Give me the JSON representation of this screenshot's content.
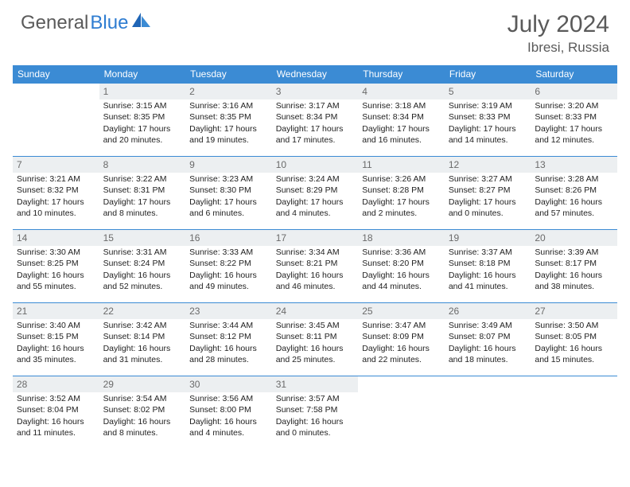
{
  "brand": {
    "part1": "General",
    "part2": "Blue"
  },
  "title": "July 2024",
  "location": "Ibresi, Russia",
  "colors": {
    "header_bg": "#3b8bd4",
    "header_text": "#ffffff",
    "daynum_bg": "#eceff1",
    "daynum_text": "#6a6a6a",
    "border": "#3b8bd4",
    "brand_gray": "#5a5a5a",
    "brand_blue": "#2e7cd1"
  },
  "weekdays": [
    "Sunday",
    "Monday",
    "Tuesday",
    "Wednesday",
    "Thursday",
    "Friday",
    "Saturday"
  ],
  "layout": {
    "first_weekday_index": 1,
    "days_in_month": 31
  },
  "days": [
    {
      "n": 1,
      "sunrise": "3:15 AM",
      "sunset": "8:35 PM",
      "daylight": "17 hours and 20 minutes."
    },
    {
      "n": 2,
      "sunrise": "3:16 AM",
      "sunset": "8:35 PM",
      "daylight": "17 hours and 19 minutes."
    },
    {
      "n": 3,
      "sunrise": "3:17 AM",
      "sunset": "8:34 PM",
      "daylight": "17 hours and 17 minutes."
    },
    {
      "n": 4,
      "sunrise": "3:18 AM",
      "sunset": "8:34 PM",
      "daylight": "17 hours and 16 minutes."
    },
    {
      "n": 5,
      "sunrise": "3:19 AM",
      "sunset": "8:33 PM",
      "daylight": "17 hours and 14 minutes."
    },
    {
      "n": 6,
      "sunrise": "3:20 AM",
      "sunset": "8:33 PM",
      "daylight": "17 hours and 12 minutes."
    },
    {
      "n": 7,
      "sunrise": "3:21 AM",
      "sunset": "8:32 PM",
      "daylight": "17 hours and 10 minutes."
    },
    {
      "n": 8,
      "sunrise": "3:22 AM",
      "sunset": "8:31 PM",
      "daylight": "17 hours and 8 minutes."
    },
    {
      "n": 9,
      "sunrise": "3:23 AM",
      "sunset": "8:30 PM",
      "daylight": "17 hours and 6 minutes."
    },
    {
      "n": 10,
      "sunrise": "3:24 AM",
      "sunset": "8:29 PM",
      "daylight": "17 hours and 4 minutes."
    },
    {
      "n": 11,
      "sunrise": "3:26 AM",
      "sunset": "8:28 PM",
      "daylight": "17 hours and 2 minutes."
    },
    {
      "n": 12,
      "sunrise": "3:27 AM",
      "sunset": "8:27 PM",
      "daylight": "17 hours and 0 minutes."
    },
    {
      "n": 13,
      "sunrise": "3:28 AM",
      "sunset": "8:26 PM",
      "daylight": "16 hours and 57 minutes."
    },
    {
      "n": 14,
      "sunrise": "3:30 AM",
      "sunset": "8:25 PM",
      "daylight": "16 hours and 55 minutes."
    },
    {
      "n": 15,
      "sunrise": "3:31 AM",
      "sunset": "8:24 PM",
      "daylight": "16 hours and 52 minutes."
    },
    {
      "n": 16,
      "sunrise": "3:33 AM",
      "sunset": "8:22 PM",
      "daylight": "16 hours and 49 minutes."
    },
    {
      "n": 17,
      "sunrise": "3:34 AM",
      "sunset": "8:21 PM",
      "daylight": "16 hours and 46 minutes."
    },
    {
      "n": 18,
      "sunrise": "3:36 AM",
      "sunset": "8:20 PM",
      "daylight": "16 hours and 44 minutes."
    },
    {
      "n": 19,
      "sunrise": "3:37 AM",
      "sunset": "8:18 PM",
      "daylight": "16 hours and 41 minutes."
    },
    {
      "n": 20,
      "sunrise": "3:39 AM",
      "sunset": "8:17 PM",
      "daylight": "16 hours and 38 minutes."
    },
    {
      "n": 21,
      "sunrise": "3:40 AM",
      "sunset": "8:15 PM",
      "daylight": "16 hours and 35 minutes."
    },
    {
      "n": 22,
      "sunrise": "3:42 AM",
      "sunset": "8:14 PM",
      "daylight": "16 hours and 31 minutes."
    },
    {
      "n": 23,
      "sunrise": "3:44 AM",
      "sunset": "8:12 PM",
      "daylight": "16 hours and 28 minutes."
    },
    {
      "n": 24,
      "sunrise": "3:45 AM",
      "sunset": "8:11 PM",
      "daylight": "16 hours and 25 minutes."
    },
    {
      "n": 25,
      "sunrise": "3:47 AM",
      "sunset": "8:09 PM",
      "daylight": "16 hours and 22 minutes."
    },
    {
      "n": 26,
      "sunrise": "3:49 AM",
      "sunset": "8:07 PM",
      "daylight": "16 hours and 18 minutes."
    },
    {
      "n": 27,
      "sunrise": "3:50 AM",
      "sunset": "8:05 PM",
      "daylight": "16 hours and 15 minutes."
    },
    {
      "n": 28,
      "sunrise": "3:52 AM",
      "sunset": "8:04 PM",
      "daylight": "16 hours and 11 minutes."
    },
    {
      "n": 29,
      "sunrise": "3:54 AM",
      "sunset": "8:02 PM",
      "daylight": "16 hours and 8 minutes."
    },
    {
      "n": 30,
      "sunrise": "3:56 AM",
      "sunset": "8:00 PM",
      "daylight": "16 hours and 4 minutes."
    },
    {
      "n": 31,
      "sunrise": "3:57 AM",
      "sunset": "7:58 PM",
      "daylight": "16 hours and 0 minutes."
    }
  ],
  "labels": {
    "sunrise": "Sunrise:",
    "sunset": "Sunset:",
    "daylight": "Daylight:"
  }
}
